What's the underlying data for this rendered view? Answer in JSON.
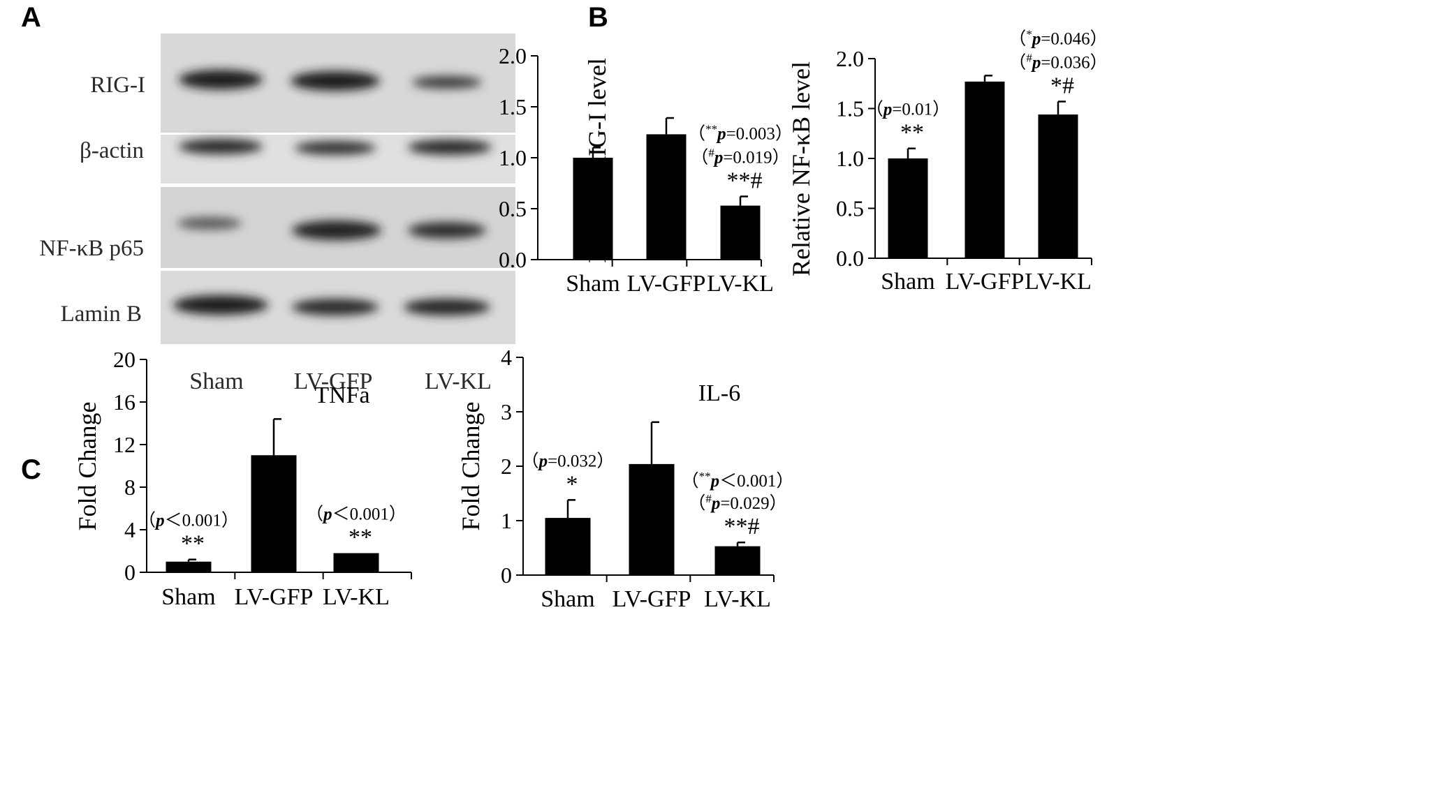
{
  "panels": {
    "A": "A",
    "B": "B",
    "C": "C"
  },
  "blot": {
    "rows": [
      "RIG-I",
      "β-actin",
      "NF-κB p65",
      "Lamin B"
    ],
    "lanes": [
      "Sham",
      "LV-GFP",
      "LV-KL"
    ]
  },
  "chart_data": [
    {
      "type": "bar",
      "panel": "B",
      "ylabel": "Relative RIG-I level",
      "categories": [
        "Sham",
        "LV-GFP",
        "LV-KL"
      ],
      "values": [
        1.0,
        1.23,
        0.53
      ],
      "errors": [
        0.1,
        0.16,
        0.09
      ],
      "ylim": [
        0,
        2.0
      ],
      "yticks": [
        "0.0",
        "0.5",
        "1.0",
        "1.5",
        "2.0"
      ],
      "annotations": [
        {
          "bar": 2,
          "lines": [
            "（**p=0.003）",
            "（#p=0.019）",
            "**#"
          ]
        }
      ]
    },
    {
      "type": "bar",
      "panel": "B",
      "ylabel": "Relative NF-κB level",
      "categories": [
        "Sham",
        "LV-GFP",
        "LV-KL"
      ],
      "values": [
        1.0,
        1.77,
        1.44
      ],
      "errors": [
        0.1,
        0.06,
        0.13
      ],
      "ylim": [
        0,
        2.0
      ],
      "yticks": [
        "0.0",
        "0.5",
        "1.0",
        "1.5",
        "2.0"
      ],
      "annotations": [
        {
          "bar": 0,
          "lines": [
            "（p=0.01）",
            "**"
          ]
        },
        {
          "bar": 2,
          "lines": [
            "（*p=0.046）",
            "（#p=0.036）",
            "*#"
          ]
        }
      ]
    },
    {
      "type": "bar",
      "panel": "C",
      "title": "TNFa",
      "ylabel": "Fold Change",
      "categories": [
        "Sham",
        "LV-GFP",
        "LV-KL"
      ],
      "values": [
        1.0,
        11.0,
        1.8
      ],
      "errors": [
        0.2,
        3.4,
        0.0
      ],
      "ylim": [
        0,
        20
      ],
      "yticks": [
        "0",
        "4",
        "8",
        "12",
        "16",
        "20"
      ],
      "annotations": [
        {
          "bar": 0,
          "lines": [
            "（p＜0.001）",
            "**"
          ]
        },
        {
          "bar": 2,
          "lines": [
            "（p＜0.001）",
            "**"
          ]
        }
      ]
    },
    {
      "type": "bar",
      "panel": "C",
      "title": "IL-6",
      "ylabel": "Fold Change",
      "categories": [
        "Sham",
        "LV-GFP",
        "LV-KL"
      ],
      "values": [
        1.05,
        2.04,
        0.53
      ],
      "errors": [
        0.33,
        0.77,
        0.07
      ],
      "ylim": [
        0,
        4
      ],
      "yticks": [
        "0",
        "1",
        "2",
        "3",
        "4"
      ],
      "annotations": [
        {
          "bar": 0,
          "lines": [
            "（p=0.032）",
            "*"
          ]
        },
        {
          "bar": 2,
          "lines": [
            "（**p＜0.001）",
            "（#p=0.029）",
            "**#"
          ]
        }
      ]
    }
  ]
}
